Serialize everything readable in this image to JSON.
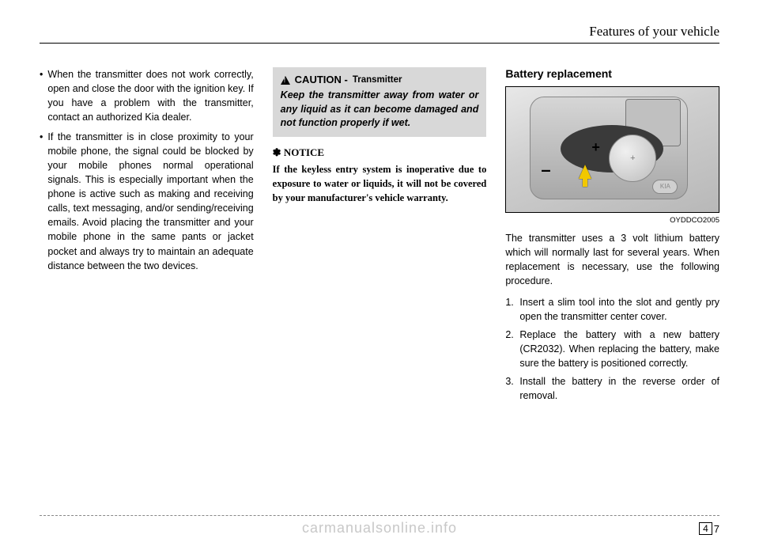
{
  "header": {
    "title": "Features of your vehicle"
  },
  "col1": {
    "bullets": [
      "When the transmitter does not work correctly, open and close the door with the ignition key. If you have a problem with the transmitter, contact an authorized Kia dealer.",
      "If the transmitter is in close proximity to your mobile phone, the signal could be blocked by your mobile phones normal operational signals. This is especially important when the phone is active such as making and receiving calls, text messaging, and/or sending/receiving emails. Avoid placing the transmitter and your mobile phone in the same pants or jacket pocket and always try to maintain an adequate distance between the two devices."
    ]
  },
  "col2": {
    "caution_label": "CAUTION -",
    "caution_sub": "Transmitter",
    "caution_body": "Keep the transmitter away from water or any liquid as it can become damaged and not function properly if wet.",
    "notice_label": "✽ NOTICE",
    "notice_body": "If the keyless entry system is inoperative due to exposure to water or liquids, it will not be covered by your manufacturer's vehicle warranty."
  },
  "col3": {
    "section_title": "Battery replacement",
    "image_code": "OYDDCO2005",
    "body": "The transmitter uses a 3 volt lithium battery which will normally last for several years. When replacement is necessary, use the following procedure.",
    "steps": [
      "Insert a slim tool into the slot and gently pry open the transmitter center cover.",
      "Replace the battery with a new battery (CR2032). When replacing the battery, make sure the battery is positioned correctly.",
      "Install the battery in the reverse order of removal."
    ]
  },
  "page": {
    "section": "4",
    "num": "7"
  },
  "watermark": "carmanualsonline.info",
  "logo": "KIA"
}
